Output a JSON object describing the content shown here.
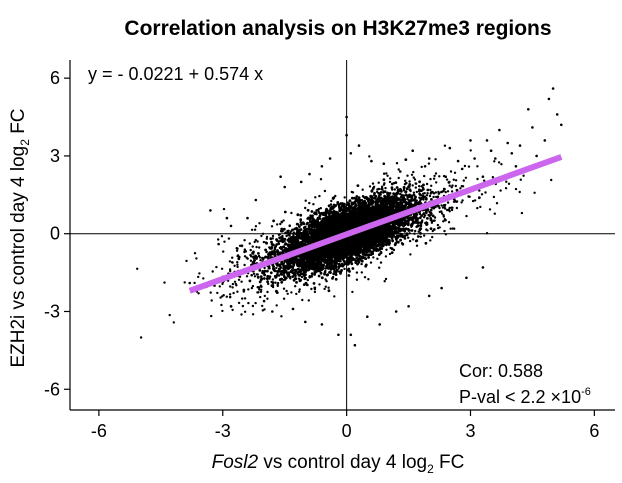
{
  "chart_data": {
    "type": "scatter",
    "title": "Correlation analysis on H3K27me3 regions",
    "xlabel": {
      "italic_part": "Fosl2",
      "prefix": " vs control day 4 log",
      "subscript": "2",
      "suffix": " FC"
    },
    "ylabel": {
      "prefix": "EZH2i vs control day 4 log",
      "subscript": "2",
      "suffix": " FC"
    },
    "xlim": [
      -6.7,
      6.5
    ],
    "ylim": [
      -6.8,
      6.7
    ],
    "x_ticks": [
      -6,
      -3,
      0,
      3,
      6
    ],
    "y_ticks": [
      -6,
      -3,
      0,
      3,
      6
    ],
    "x_tick_labels": [
      "-6",
      "-3",
      "0",
      "3",
      "6"
    ],
    "y_tick_labels": [
      "-6",
      "-3",
      "0",
      "3",
      "6"
    ],
    "reference_lines": {
      "x": 0,
      "y": 0
    },
    "regression": {
      "intercept": -0.0221,
      "slope": 0.574,
      "x_range": [
        -3.8,
        5.2
      ],
      "color": "#cc66ee"
    },
    "equation_text": "y = - 0.0221 + 0.574 x",
    "stats": {
      "cor_text": "Cor: 0.588",
      "pval_prefix": "P-val < 2.2 ×10",
      "pval_exponent": "-6"
    },
    "point_color": "#000000",
    "outlier_points": [
      [
        5.0,
        5.6
      ],
      [
        4.9,
        5.2
      ],
      [
        4.4,
        4.8
      ],
      [
        5.2,
        4.2
      ],
      [
        4.5,
        4.1
      ],
      [
        4.8,
        3.6
      ],
      [
        3.5,
        3.2
      ],
      [
        3.9,
        3.5
      ],
      [
        4.6,
        3.0
      ],
      [
        3.0,
        3.6
      ],
      [
        3.7,
        4.0
      ],
      [
        4.2,
        3.4
      ],
      [
        0.0,
        4.5
      ],
      [
        0.0,
        3.8
      ],
      [
        0.1,
        3.1
      ],
      [
        0.6,
        2.8
      ],
      [
        0.9,
        2.7
      ],
      [
        1.6,
        3.2
      ],
      [
        2.7,
        2.8
      ],
      [
        3.1,
        2.9
      ],
      [
        2.5,
        3.3
      ],
      [
        1.9,
        2.6
      ],
      [
        -0.6,
        2.6
      ],
      [
        -1.1,
        2.0
      ],
      [
        -1.6,
        2.2
      ],
      [
        -3.3,
        0.9
      ],
      [
        -3.1,
        -0.4
      ],
      [
        -2.6,
        -0.9
      ],
      [
        -2.3,
        -1.6
      ],
      [
        -3.2,
        -2.0
      ],
      [
        -3.8,
        -1.9
      ],
      [
        -2.8,
        -2.8
      ],
      [
        -2.0,
        -2.6
      ],
      [
        -1.8,
        -3.0
      ],
      [
        -1.0,
        -3.4
      ],
      [
        -0.6,
        -3.5
      ],
      [
        -0.2,
        -3.9
      ],
      [
        0.1,
        -3.9
      ],
      [
        0.2,
        -4.3
      ],
      [
        0.8,
        -3.5
      ],
      [
        0.5,
        -3.2
      ],
      [
        1.5,
        -2.8
      ],
      [
        2.3,
        -2.1
      ],
      [
        2.9,
        -1.7
      ],
      [
        3.3,
        -1.3
      ],
      [
        1.2,
        -3.0
      ],
      [
        -2.2,
        1.3
      ],
      [
        -2.8,
        0.3
      ],
      [
        -1.5,
        1.8
      ],
      [
        2.0,
        2.9
      ],
      [
        3.3,
        2.2
      ],
      [
        2.8,
        2.5
      ],
      [
        4.0,
        3.1
      ],
      [
        3.4,
        3.6
      ],
      [
        -2.4,
        0.6
      ],
      [
        0.3,
        3.4
      ],
      [
        -0.4,
        2.9
      ],
      [
        1.3,
        2.4
      ],
      [
        4.1,
        2.6
      ],
      [
        3.6,
        2.9
      ],
      [
        5.1,
        4.6
      ],
      [
        -1.3,
        -2.9
      ],
      [
        2.0,
        -2.4
      ],
      [
        -0.9,
        2.3
      ],
      [
        2.4,
        2.2
      ],
      [
        -2.9,
        0.6
      ]
    ],
    "cloud": {
      "center": [
        0.0,
        -0.02
      ],
      "slope": 0.574,
      "core_sd_x": 0.75,
      "tail_sd_x": 1.5,
      "core_resid_sd": 0.48,
      "tail_resid_sd": 0.75,
      "n_core": 6500,
      "n_tail": 1600
    }
  }
}
